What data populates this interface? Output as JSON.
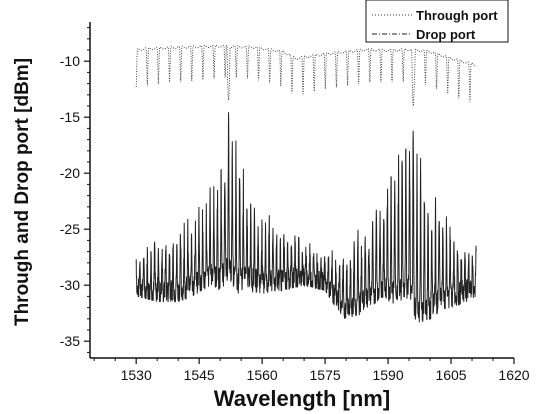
{
  "chart_data": {
    "type": "line",
    "title": "",
    "xlabel": "Wavelength [nm]",
    "ylabel": "Through and Drop port [dBm]",
    "xlim": [
      1519,
      1620
    ],
    "ylim": [
      -36.5,
      -6.5
    ],
    "xticks": [
      1530,
      1545,
      1560,
      1575,
      1590,
      1605,
      1620
    ],
    "yticks": [
      -35,
      -30,
      -25,
      -20,
      -15,
      -10
    ],
    "grid": false,
    "legend_position": "top-right",
    "series": [
      {
        "name": "Through port",
        "style": "dotted",
        "color": "#333333",
        "x_range": [
          1530,
          1611
        ],
        "envelope_x": [
          1530,
          1540,
          1550,
          1558,
          1565,
          1568,
          1575,
          1580,
          1585,
          1590,
          1595,
          1600,
          1605,
          1611
        ],
        "envelope_max": [
          -8.8,
          -8.6,
          -8.5,
          -8.6,
          -9.0,
          -9.6,
          -9.2,
          -9.0,
          -8.8,
          -8.9,
          -8.8,
          -9.0,
          -9.6,
          -10.2
        ],
        "dip_depth_db": [
          3.5,
          3.3,
          3.0,
          3.0,
          3.3,
          3.6,
          3.3,
          3.2,
          3.2,
          3.0,
          3.0,
          3.3,
          3.5,
          3.6
        ],
        "deep_notches": [
          {
            "x": 1552,
            "y": -13.5
          },
          {
            "x": 1596,
            "y": -14.0
          }
        ]
      },
      {
        "name": "Drop port",
        "style": "dash-dot",
        "color": "#222222",
        "x_range": [
          1530,
          1611
        ],
        "envelope_x": [
          1530,
          1535,
          1540,
          1545,
          1548,
          1550,
          1552,
          1554,
          1556,
          1560,
          1565,
          1570,
          1575,
          1580,
          1585,
          1588,
          1592,
          1595,
          1597,
          1600,
          1603,
          1606,
          1611
        ],
        "envelope_max": [
          -27.0,
          -26.0,
          -25.0,
          -23.0,
          -21.0,
          -18.0,
          -13.5,
          -17.0,
          -20.0,
          -23.0,
          -25.0,
          -26.0,
          -27.0,
          -26.0,
          -24.0,
          -21.0,
          -17.0,
          -14.5,
          -16.0,
          -21.0,
          -23.0,
          -25.0,
          -26.5
        ],
        "envelope_min": [
          -31.0,
          -31.5,
          -31.5,
          -31.0,
          -30.5,
          -31.5,
          -31.0,
          -32.0,
          -31.0,
          -31.0,
          -30.5,
          -30.0,
          -30.5,
          -33.5,
          -32.5,
          -32.0,
          -33.0,
          -33.0,
          -35.5,
          -34.0,
          -32.5,
          -32.0,
          -31.0
        ]
      }
    ]
  }
}
